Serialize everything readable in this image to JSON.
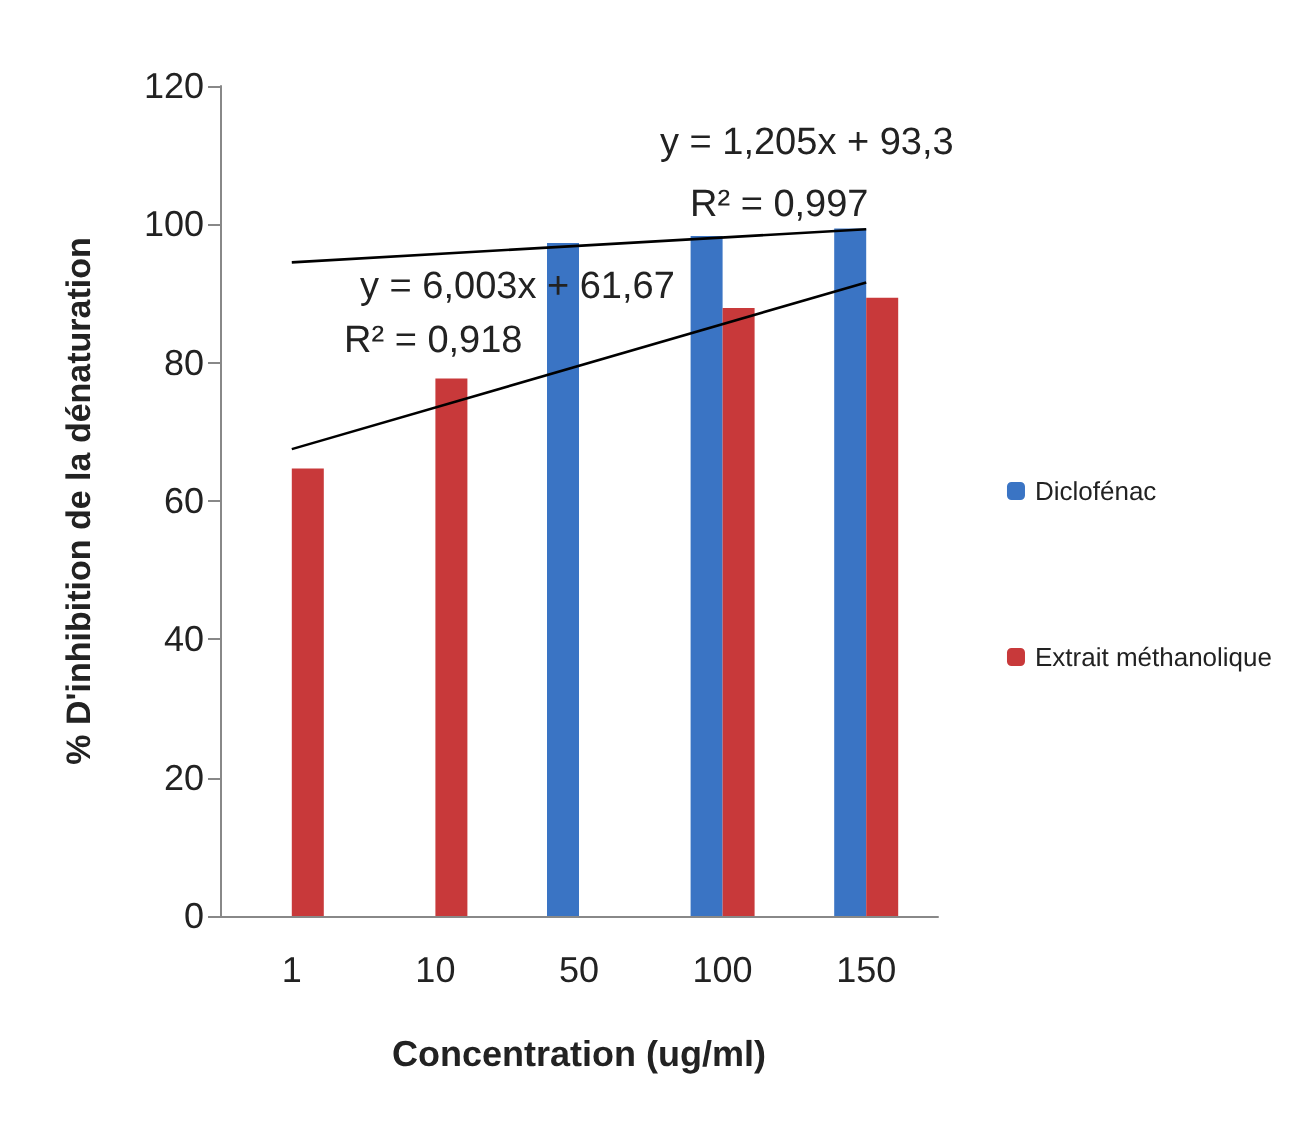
{
  "chart_data": {
    "type": "bar",
    "xlabel": "Concentration (ug/ml)",
    "ylabel": "% D'inhibition de la dénaturation",
    "categories": [
      "1",
      "10",
      "50",
      "100",
      "150"
    ],
    "series": [
      {
        "name": "Diclofénac",
        "color": "#3a74c4",
        "values": [
          null,
          null,
          97.3,
          98.3,
          99.4
        ]
      },
      {
        "name": "Extrait méthanolique",
        "color": "#c8393a",
        "values": [
          64.7,
          77.7,
          null,
          87.9,
          89.4
        ]
      },
      {
        "type": "line",
        "color": "#000000",
        "x": [
          "1",
          "150"
        ],
        "values": [
          94.5,
          99.3
        ]
      },
      {
        "type": "line",
        "color": "#000000",
        "x": [
          "1",
          "150"
        ],
        "values": [
          67.5,
          91.6
        ]
      }
    ],
    "ylim": [
      0,
      120
    ],
    "yticks": [
      0,
      20,
      40,
      60,
      80,
      100,
      120
    ],
    "grid": false,
    "legend": "right",
    "marker": "none",
    "annotations": [
      "y = 1,205x + 93,3",
      "R² = 0,997",
      "y = 6,003x + 61,67",
      "R² = 0,918"
    ]
  }
}
